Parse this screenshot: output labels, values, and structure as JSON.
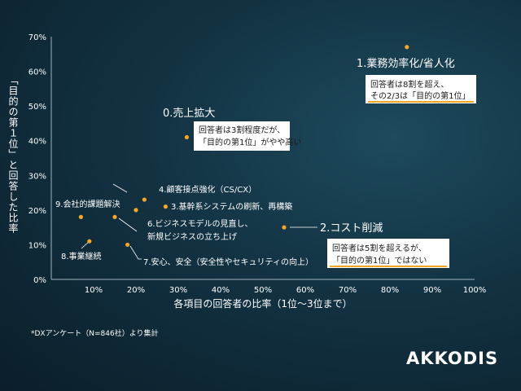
{
  "chart_data": {
    "type": "scatter",
    "xlabel": "各項目の回答者の比率（1位〜3位まで）",
    "ylabel": "「目的の第１位」と回答した比率",
    "xlim": [
      0,
      100
    ],
    "ylim": [
      0,
      70
    ],
    "x_ticks": [
      "10%",
      "20%",
      "30%",
      "40%",
      "50%",
      "60%",
      "70%",
      "80%",
      "90%",
      "100%"
    ],
    "y_ticks": [
      "0%",
      "10%",
      "20%",
      "30%",
      "40%",
      "50%",
      "60%",
      "70%"
    ],
    "grid": false,
    "point_color": "#f5a623",
    "points": [
      {
        "label": "0.売上拡大",
        "x": 32,
        "y": 41
      },
      {
        "label": "1.業務効率化/省人化",
        "x": 84,
        "y": 67
      },
      {
        "label": "2.コスト削減",
        "x": 55,
        "y": 15
      },
      {
        "label": "3.基幹系システムの刷新、再構築",
        "x": 27,
        "y": 21
      },
      {
        "label": "4.顧客接点強化（CS/CX）",
        "x": 22,
        "y": 23
      },
      {
        "label": "6.ビジネスモデルの見直し、新規ビジネスの立ち上げ",
        "x": 15,
        "y": 18
      },
      {
        "label": "7.安心、安全（安全性やセキュリティの向上）",
        "x": 18,
        "y": 10
      },
      {
        "label": "8.事業継続",
        "x": 9,
        "y": 11
      },
      {
        "label": "9.会社的課題解決",
        "x": 7,
        "y": 18
      },
      {
        "label": "",
        "x": 20,
        "y": 20
      }
    ],
    "annotations": [
      {
        "lines": [
          "回答者は8割を超え、",
          "その2/3は「目的の第1位」"
        ]
      },
      {
        "lines": [
          "回答者は3割程度だが、",
          "「目的の第1位」がやや高い"
        ]
      },
      {
        "lines": [
          "回答者は5割を超えるが、",
          "「目的の第1位」ではない"
        ]
      }
    ]
  },
  "footnote": "*DXアンケート（N=846社）より集計",
  "logo": "AKKODIS"
}
